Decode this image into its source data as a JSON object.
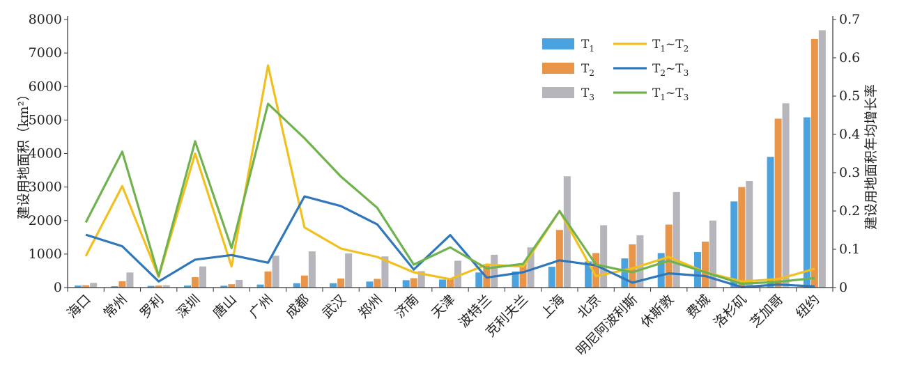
{
  "chart_data": {
    "type": "bar",
    "categories": [
      "海口",
      "常州",
      "罗利",
      "深圳",
      "唐山",
      "广州",
      "成都",
      "武汉",
      "郑州",
      "济南",
      "天津",
      "波特兰",
      "克利夫兰",
      "上海",
      "北京",
      "明尼阿波利斯",
      "休斯敦",
      "费城",
      "洛杉矶",
      "芝加哥",
      "纽约"
    ],
    "series": [
      {
        "name": "T1",
        "axis": "left",
        "kind": "bar",
        "color": "#4aa3df",
        "values": [
          60,
          40,
          50,
          60,
          55,
          90,
          130,
          130,
          180,
          220,
          240,
          450,
          480,
          620,
          780,
          870,
          1030,
          1060,
          2570,
          3900,
          5080
        ]
      },
      {
        "name": "T2",
        "axis": "left",
        "kind": "bar",
        "color": "#e8954a",
        "values": [
          70,
          190,
          60,
          310,
          100,
          480,
          360,
          270,
          260,
          280,
          280,
          700,
          720,
          1720,
          1030,
          1290,
          1880,
          1370,
          3000,
          5040,
          7420
        ]
      },
      {
        "name": "T3",
        "axis": "left",
        "kind": "bar",
        "color": "#b5b5bb",
        "values": [
          140,
          450,
          70,
          630,
          230,
          950,
          1080,
          1020,
          930,
          490,
          800,
          980,
          1200,
          3320,
          1860,
          1560,
          2850,
          2000,
          3180,
          5500,
          7680
        ]
      },
      {
        "name": "T1~T2",
        "axis": "right",
        "kind": "line",
        "color": "#f2c01e",
        "values": [
          0.082,
          0.265,
          0.028,
          0.35,
          0.055,
          0.58,
          0.157,
          0.102,
          0.08,
          0.04,
          0.022,
          0.06,
          0.055,
          0.2,
          0.03,
          0.05,
          0.08,
          0.04,
          0.016,
          0.022,
          0.049
        ]
      },
      {
        "name": "T2~T3",
        "axis": "right",
        "kind": "line",
        "color": "#2f77bb",
        "values": [
          0.138,
          0.108,
          0.016,
          0.073,
          0.085,
          0.065,
          0.238,
          0.213,
          0.165,
          0.047,
          0.137,
          0.026,
          0.04,
          0.071,
          0.058,
          0.013,
          0.037,
          0.03,
          0.001,
          0.008,
          0.003
        ]
      },
      {
        "name": "T1~T3",
        "axis": "right",
        "kind": "line",
        "color": "#6fb24e",
        "values": [
          0.17,
          0.355,
          0.03,
          0.382,
          0.103,
          0.48,
          0.39,
          0.29,
          0.208,
          0.06,
          0.105,
          0.05,
          0.062,
          0.2,
          0.06,
          0.04,
          0.07,
          0.04,
          0.01,
          0.015,
          0.025
        ]
      }
    ],
    "ylabel": "建设用地面积（km²）",
    "y2label": "建设用地面积年均增长率",
    "ylim": [
      0,
      8000
    ],
    "y2lim": [
      0,
      0.7
    ],
    "yticks": [
      "0",
      "1000",
      "2000",
      "3000",
      "4000",
      "5000",
      "6000",
      "7000",
      "8000"
    ],
    "y2ticks": [
      "0",
      "0.1",
      "0.2",
      "0.3",
      "0.4",
      "0.5",
      "0.6",
      "0.7"
    ],
    "legend": [
      {
        "main": "T",
        "sub": "1",
        "rest": "",
        "restsub": "",
        "kind": "bar",
        "color": "#4aa3df"
      },
      {
        "main": "T",
        "sub": "2",
        "rest": "",
        "restsub": "",
        "kind": "bar",
        "color": "#e8954a"
      },
      {
        "main": "T",
        "sub": "3",
        "rest": "",
        "restsub": "",
        "kind": "bar",
        "color": "#b5b5bb"
      },
      {
        "main": "T",
        "sub": "1",
        "rest": "~T",
        "restsub": "2",
        "kind": "line",
        "color": "#f2c01e"
      },
      {
        "main": "T",
        "sub": "2",
        "rest": "~T",
        "restsub": "3",
        "kind": "line",
        "color": "#2f77bb"
      },
      {
        "main": "T",
        "sub": "1",
        "rest": "~T",
        "restsub": "3",
        "kind": "line",
        "color": "#6fb24e"
      }
    ],
    "legend_position": "top-right",
    "grid": false
  }
}
